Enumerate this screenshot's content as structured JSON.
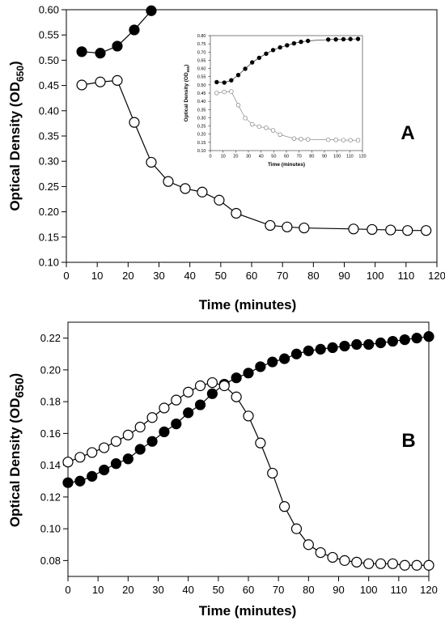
{
  "chart_data": [
    {
      "id": "panel-a",
      "type": "line",
      "panel_label": "A",
      "xlabel": "Time (minutes)",
      "ylabel_main": "Optical Density (OD",
      "ylabel_sub": "650",
      "ylabel_close": ")",
      "xlim": [
        0,
        120
      ],
      "ylim": [
        0.1,
        0.6
      ],
      "xticks": [
        0,
        10,
        20,
        30,
        40,
        50,
        60,
        70,
        80,
        90,
        100,
        110,
        120
      ],
      "yticks": [
        0.1,
        0.15,
        0.2,
        0.25,
        0.3,
        0.35,
        0.4,
        0.45,
        0.5,
        0.55,
        0.6
      ],
      "xtick_labels": [
        "0",
        "10",
        "20",
        "30",
        "40",
        "50",
        "60",
        "70",
        "80",
        "90",
        "100",
        "110",
        "120"
      ],
      "ytick_labels": [
        "0.10",
        "0.15",
        "0.20",
        "0.25",
        "0.30",
        "0.35",
        "0.40",
        "0.45",
        "0.50",
        "0.55",
        "0.60"
      ],
      "grid": false,
      "series": [
        {
          "marker": "filled",
          "x": [
            5,
            11,
            16.5,
            22,
            27.5
          ],
          "y": [
            0.517,
            0.514,
            0.528,
            0.56,
            0.598
          ]
        },
        {
          "marker": "open",
          "x": [
            5,
            11,
            16.5,
            22,
            27.5,
            33,
            38.5,
            44,
            49.5,
            55,
            66,
            71.5,
            77,
            93,
            99,
            105,
            110.5,
            116.5
          ],
          "y": [
            0.451,
            0.457,
            0.46,
            0.377,
            0.298,
            0.26,
            0.246,
            0.239,
            0.223,
            0.197,
            0.173,
            0.17,
            0.168,
            0.166,
            0.165,
            0.164,
            0.163,
            0.163
          ]
        }
      ]
    },
    {
      "id": "panel-a-inset",
      "type": "line",
      "xlabel": "Time (minutes)",
      "ylabel_main": "Optical Density (OD",
      "ylabel_sub": "650",
      "ylabel_close": ")",
      "xlim": [
        0,
        120
      ],
      "ylim": [
        0.1,
        0.8
      ],
      "xticks": [
        0,
        10,
        20,
        30,
        40,
        50,
        60,
        70,
        80,
        90,
        100,
        110,
        120
      ],
      "yticks": [
        0.1,
        0.15,
        0.2,
        0.25,
        0.3,
        0.35,
        0.4,
        0.45,
        0.5,
        0.55,
        0.6,
        0.65,
        0.7,
        0.75,
        0.8
      ],
      "xtick_labels": [
        "0",
        "10",
        "20",
        "30",
        "40",
        "50",
        "60",
        "70",
        "80",
        "90",
        "100",
        "110",
        "120"
      ],
      "ytick_labels": [
        "0.10",
        "0.15",
        "0.20",
        "0.25",
        "0.30",
        "0.35",
        "0.40",
        "0.45",
        "0.50",
        "0.55",
        "0.60",
        "0.65",
        "0.70",
        "0.75",
        "0.80"
      ],
      "grid": false,
      "series": [
        {
          "marker": "filled",
          "x": [
            5,
            11,
            16.5,
            22,
            27.5,
            33,
            38.5,
            44,
            49.5,
            55,
            60.5,
            66,
            71.5,
            77,
            93,
            99,
            105,
            110.5,
            116.5
          ],
          "y": [
            0.517,
            0.514,
            0.528,
            0.56,
            0.598,
            0.637,
            0.665,
            0.69,
            0.712,
            0.728,
            0.741,
            0.753,
            0.762,
            0.768,
            0.776,
            0.777,
            0.778,
            0.779,
            0.78
          ]
        },
        {
          "marker": "open",
          "x": [
            5,
            11,
            16.5,
            22,
            27.5,
            33,
            38.5,
            44,
            49.5,
            55,
            66,
            71.5,
            77,
            93,
            99,
            105,
            110.5,
            116.5
          ],
          "y": [
            0.451,
            0.457,
            0.46,
            0.377,
            0.298,
            0.26,
            0.246,
            0.239,
            0.223,
            0.197,
            0.173,
            0.17,
            0.168,
            0.166,
            0.165,
            0.164,
            0.163,
            0.163
          ]
        }
      ]
    },
    {
      "id": "panel-b",
      "type": "line",
      "panel_label": "B",
      "xlabel": "Time (minutes)",
      "ylabel_main": "Optical Density (OD",
      "ylabel_sub": "650",
      "ylabel_close": ")",
      "xlim": [
        0,
        120
      ],
      "ylim": [
        0.07,
        0.23
      ],
      "xticks": [
        0,
        10,
        20,
        30,
        40,
        50,
        60,
        70,
        80,
        90,
        100,
        110,
        120
      ],
      "yticks": [
        0.08,
        0.1,
        0.12,
        0.14,
        0.16,
        0.18,
        0.2,
        0.22
      ],
      "xtick_labels": [
        "0",
        "10",
        "20",
        "30",
        "40",
        "50",
        "60",
        "70",
        "80",
        "90",
        "100",
        "110",
        "120"
      ],
      "ytick_labels": [
        "0.08",
        "0.10",
        "0.12",
        "0.14",
        "0.16",
        "0.18",
        "0.20",
        "0.22"
      ],
      "grid": false,
      "series": [
        {
          "marker": "filled",
          "x": [
            0,
            4,
            8,
            12,
            16,
            20,
            24,
            28,
            32,
            36,
            40,
            44,
            48,
            52,
            56,
            60,
            64,
            68,
            72,
            76,
            80,
            84,
            88,
            92,
            96,
            100,
            104,
            108,
            112,
            116,
            120
          ],
          "y": [
            0.129,
            0.13,
            0.133,
            0.137,
            0.141,
            0.144,
            0.15,
            0.155,
            0.161,
            0.166,
            0.173,
            0.178,
            0.185,
            0.191,
            0.195,
            0.198,
            0.202,
            0.205,
            0.207,
            0.21,
            0.212,
            0.213,
            0.214,
            0.215,
            0.216,
            0.216,
            0.217,
            0.218,
            0.219,
            0.22,
            0.221
          ]
        },
        {
          "marker": "open",
          "x": [
            0,
            4,
            8,
            12,
            16,
            20,
            24,
            28,
            32,
            36,
            40,
            44,
            48,
            52,
            56,
            60,
            64,
            68,
            72,
            76,
            80,
            84,
            88,
            92,
            96,
            100,
            104,
            108,
            112,
            116,
            120
          ],
          "y": [
            0.142,
            0.145,
            0.148,
            0.151,
            0.155,
            0.159,
            0.164,
            0.17,
            0.176,
            0.181,
            0.186,
            0.19,
            0.192,
            0.19,
            0.183,
            0.171,
            0.154,
            0.135,
            0.114,
            0.1,
            0.09,
            0.085,
            0.082,
            0.08,
            0.079,
            0.078,
            0.078,
            0.078,
            0.077,
            0.077,
            0.077
          ]
        }
      ]
    }
  ]
}
